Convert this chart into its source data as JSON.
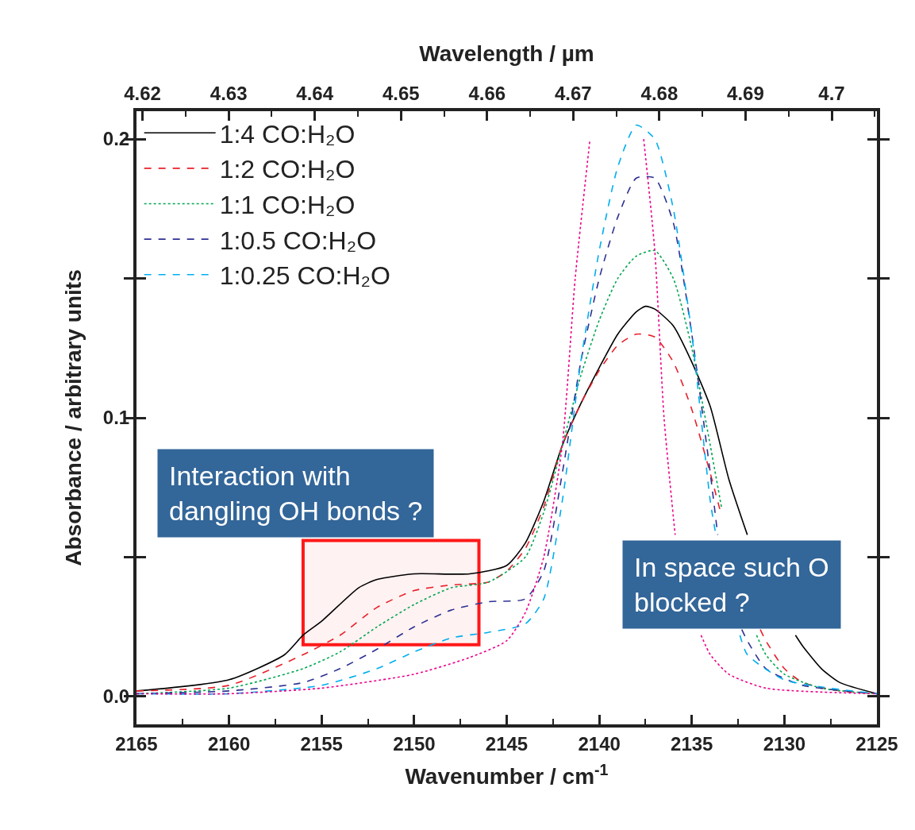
{
  "chart_data": {
    "type": "line",
    "xlabel": "Wavenumber / cm$^{-1}$",
    "x2label": "Wavelength / µm",
    "ylabel": "Absorbance / arbitrary units",
    "xlim": [
      2165,
      2125
    ],
    "xticks": [
      2165,
      2160,
      2155,
      2150,
      2145,
      2140,
      2135,
      2130,
      2125
    ],
    "x2lim": [
      4.6193,
      4.70525
    ],
    "x2ticks": [
      4.62,
      4.63,
      4.64,
      4.65,
      4.66,
      4.67,
      4.68,
      4.69,
      {
        "value": 4.7,
        "label": "4.7"
      }
    ],
    "ylim": [
      -0.01,
      0.21
    ],
    "yticks": [
      {
        "value": 0,
        "label": "0.0"
      },
      {
        "value": 0.05,
        "label": null
      },
      {
        "value": 0.1,
        "label": "0.1"
      },
      {
        "value": 0.15,
        "label": null
      },
      {
        "value": 0.2,
        "label": "0.2"
      }
    ],
    "grid": false,
    "legend": "top left",
    "marker": "none",
    "series": [
      {
        "name": "1:4 CO:H₂O",
        "color": "#000000",
        "line_style": "solid",
        "x": [
          2165,
          2160,
          2157,
          2156,
          2155,
          2153,
          2152,
          2150,
          2147,
          2145,
          2144,
          2143,
          2142,
          2141,
          2140,
          2139,
          2138,
          2137.5,
          2137,
          2136,
          2135,
          2134,
          2133,
          2132,
          2131,
          2130,
          2129.4,
          2129,
          2128,
          2127,
          2125
        ],
        "values": [
          0.002,
          0.006,
          0.015,
          0.022,
          0.027,
          0.039,
          0.042,
          0.044,
          0.044,
          0.047,
          0.055,
          0.07,
          0.09,
          0.105,
          0.118,
          0.13,
          0.138,
          0.14,
          0.139,
          0.133,
          0.12,
          0.104,
          0.078,
          0.058,
          null,
          null,
          0.022,
          0.018,
          0.01,
          0.005,
          0.001
        ]
      },
      {
        "name": "1:2 CO:H₂O",
        "color": "#e8202a",
        "line_style": "dashed",
        "x": [
          2165,
          2160,
          2156,
          2154,
          2152,
          2150,
          2148,
          2146,
          2145,
          2144,
          2143,
          2142,
          2141,
          2140,
          2139,
          2138,
          2137,
          2136,
          2135,
          2134,
          2133.4,
          2133,
          2132,
          2131.3,
          2131,
          2130,
          2129,
          2127,
          2125
        ],
        "values": [
          0.002,
          0.004,
          0.015,
          0.022,
          0.032,
          0.038,
          0.04,
          0.041,
          0.045,
          0.053,
          0.068,
          0.09,
          0.105,
          0.117,
          0.126,
          0.13,
          0.129,
          0.12,
          0.103,
          0.08,
          0.065,
          null,
          null,
          0.024,
          0.02,
          0.01,
          0.005,
          0.002,
          0.001
        ]
      },
      {
        "name": "1:1 CO:H₂O",
        "color": "#00a651",
        "line_style": "dotted",
        "x": [
          2165,
          2160,
          2156,
          2154,
          2152,
          2150,
          2148,
          2146,
          2144,
          2143,
          2142,
          2141,
          2140,
          2139,
          2138,
          2137,
          2136,
          2135,
          2134,
          2133.4,
          2133,
          2132,
          2131.5,
          2131,
          2130,
          2128,
          2125
        ],
        "values": [
          0.001,
          0.003,
          0.01,
          0.016,
          0.025,
          0.033,
          0.039,
          0.041,
          0.05,
          0.066,
          0.09,
          0.115,
          0.135,
          0.15,
          0.158,
          0.16,
          0.15,
          0.125,
          0.09,
          0.068,
          null,
          null,
          0.022,
          0.015,
          0.008,
          0.003,
          0.001
        ]
      },
      {
        "name": "1:0.5 CO:H₂O",
        "color": "#2e3192",
        "line_style": "dashed",
        "x": [
          2165,
          2160,
          2156,
          2154,
          2152,
          2150,
          2148,
          2146,
          2144,
          2143,
          2142,
          2141,
          2140,
          2139,
          2138,
          2137,
          2136,
          2135,
          2134,
          2133.6,
          2133,
          2132.3,
          2132,
          2131,
          2129,
          2125
        ],
        "values": [
          0.001,
          0.002,
          0.005,
          0.01,
          0.017,
          0.025,
          0.031,
          0.034,
          0.035,
          0.045,
          0.08,
          0.12,
          0.15,
          0.172,
          0.186,
          0.186,
          0.17,
          0.13,
          0.08,
          0.058,
          null,
          0.024,
          0.02,
          0.01,
          0.004,
          0.001
        ]
      },
      {
        "name": "1:0.25 CO:H₂O",
        "color": "#00aeef",
        "line_style": "dashed",
        "x": [
          2165,
          2160,
          2155,
          2152,
          2150,
          2148,
          2146,
          2144,
          2143,
          2142,
          2141,
          2140,
          2139,
          2138,
          2137,
          2136,
          2135,
          2134,
          2133.7,
          2133,
          2132.4,
          2132,
          2130,
          2125
        ],
        "values": [
          0.001,
          0.001,
          0.004,
          0.01,
          0.016,
          0.021,
          0.023,
          0.026,
          0.035,
          0.07,
          0.12,
          0.16,
          0.19,
          0.205,
          0.2,
          0.175,
          0.13,
          0.07,
          0.058,
          null,
          0.022,
          0.015,
          0.006,
          0.001
        ]
      },
      {
        "color": "#ec008c",
        "line_style": "dotted",
        "x": [
          2165,
          2160,
          2155,
          2150,
          2147,
          2145,
          2144,
          2143,
          2142,
          2141.3,
          2140.5,
          2139,
          2137.6,
          2137,
          2136.5,
          2135.9,
          2135,
          2134.5,
          2134,
          2133,
          2131,
          2125
        ],
        "values": [
          0.001,
          0.001,
          0.003,
          0.008,
          0.014,
          0.02,
          0.03,
          0.05,
          0.09,
          0.15,
          0.2,
          null,
          0.2,
          0.16,
          0.1,
          0.058,
          null,
          0.022,
          0.015,
          0.008,
          0.003,
          0.001
        ]
      }
    ],
    "bands": [
      {
        "axis": "x",
        "from": 2156,
        "to": 2146.5,
        "color": "#ff0000"
      }
    ],
    "annotations": [
      "Interaction with\ndangling OH bonds ?",
      "In space such O\nblocked ?"
    ]
  }
}
